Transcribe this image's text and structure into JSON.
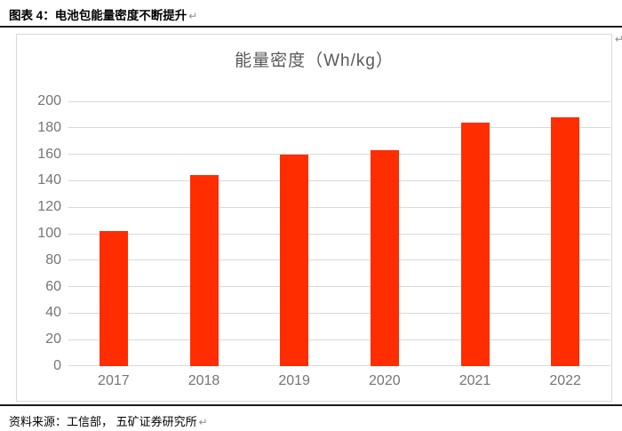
{
  "document": {
    "figure_label": "图表 4：电池包能量密度不断提升",
    "paragraph_mark": "↵",
    "source_label": "资料来源：工信部， 五矿证券研究所"
  },
  "chart_data": {
    "type": "bar",
    "title": "能量密度（Wh/kg）",
    "categories": [
      "2017",
      "2018",
      "2019",
      "2020",
      "2021",
      "2022"
    ],
    "values": [
      102,
      144,
      160,
      163,
      184,
      188
    ],
    "xlabel": "",
    "ylabel": "",
    "ylim": [
      0,
      200
    ],
    "ytick_step": 20,
    "grid": true,
    "legend": "none"
  },
  "colors": {
    "bar": "#ff2d00",
    "gridline": "#d9d9d9",
    "axis_label": "#757575",
    "chart_title": "#595959",
    "chart_border": "#d9d9d9",
    "rule": "#1a1a1a",
    "paragraph_mark": "#8c8c8c"
  }
}
